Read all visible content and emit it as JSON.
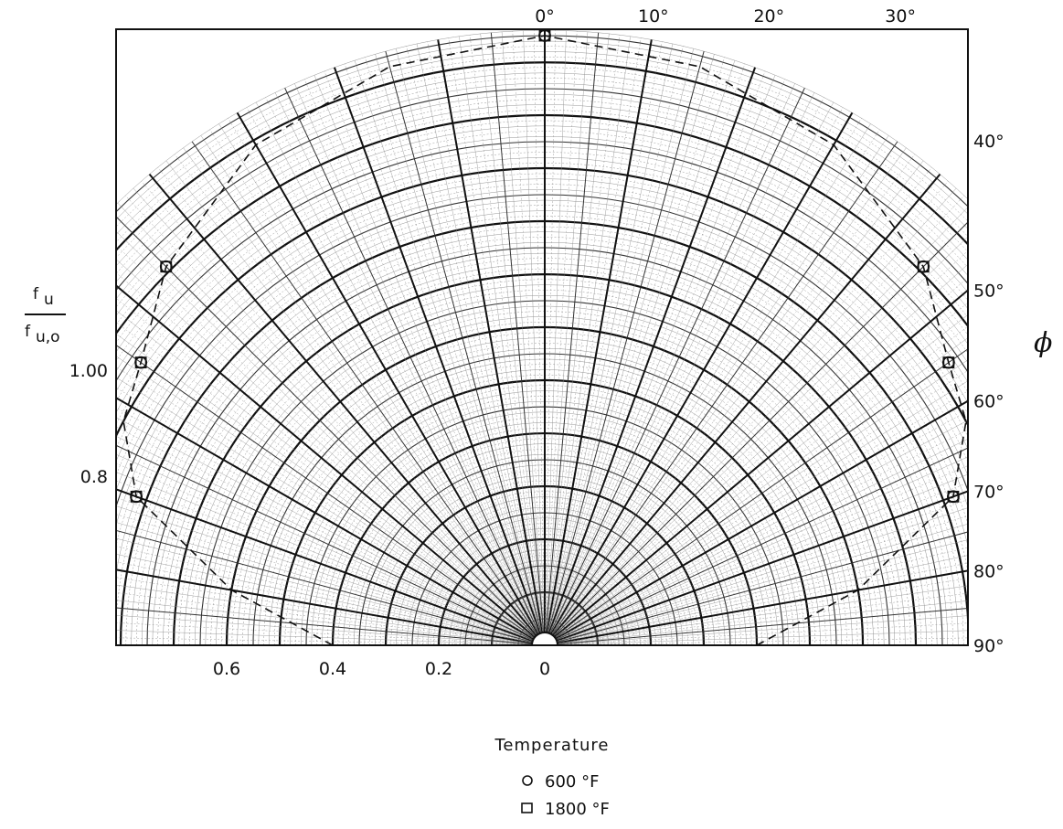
{
  "chart_data": {
    "type": "scatter",
    "polar": true,
    "title": "",
    "radial_label": {
      "numerator": "f",
      "numerator_sub": "u",
      "denominator": "f",
      "denominator_sub": "u,o"
    },
    "angle_label": "ϕ",
    "radial_ticks": [
      {
        "value": 0.6,
        "label": "0.6"
      },
      {
        "value": 0.4,
        "label": "0.4"
      },
      {
        "value": 0.2,
        "label": "0.2"
      },
      {
        "value": 0,
        "label": "0"
      }
    ],
    "vertical_ticks": [
      {
        "value": 1.0,
        "label": "1.00"
      },
      {
        "value": 0.8,
        "label": "0.8"
      }
    ],
    "angle_ticks_top": [
      {
        "value": 0,
        "label": "0°"
      },
      {
        "value": 10,
        "label": "10°"
      },
      {
        "value": 20,
        "label": "20°"
      },
      {
        "value": 30,
        "label": "30°"
      }
    ],
    "angle_ticks_right": [
      {
        "value": 40,
        "label": "40°"
      },
      {
        "value": 50,
        "label": "50°"
      },
      {
        "value": 60,
        "label": "60°"
      },
      {
        "value": 70,
        "label": "70°"
      },
      {
        "value": 80,
        "label": "80°"
      },
      {
        "value": 90,
        "label": "90°"
      }
    ],
    "r_max": 1.16,
    "grid": true,
    "legend": {
      "title": "Temperature",
      "position": "bottom",
      "entries": [
        {
          "marker": "circle",
          "label": "600 °F"
        },
        {
          "marker": "square",
          "label": "1800 °F"
        }
      ]
    },
    "series": [
      {
        "label": "600 °F",
        "marker": "circle",
        "points": [
          {
            "phi": 0,
            "r": 1.15
          },
          {
            "phi": 45,
            "r": 1.01
          },
          {
            "phi": 55,
            "r": 0.93
          },
          {
            "phi": 70,
            "r": 0.82
          },
          {
            "phi": -45,
            "r": 1.01
          },
          {
            "phi": -55,
            "r": 0.93
          },
          {
            "phi": -70,
            "r": 0.82
          }
        ]
      },
      {
        "label": "1800 °F",
        "marker": "square",
        "points": [
          {
            "phi": 0,
            "r": 1.15
          },
          {
            "phi": 45,
            "r": 1.01
          },
          {
            "phi": 55,
            "r": 0.93
          },
          {
            "phi": 70,
            "r": 0.82
          },
          {
            "phi": -45,
            "r": 1.01
          },
          {
            "phi": -55,
            "r": 0.93
          },
          {
            "phi": -70,
            "r": 0.82
          }
        ]
      }
    ],
    "fit_curve": [
      {
        "phi": -90,
        "r": 0.4
      },
      {
        "phi": -80,
        "r": 0.6
      },
      {
        "phi": -70,
        "r": 0.82
      },
      {
        "phi": -62,
        "r": 0.9
      },
      {
        "phi": -55,
        "r": 0.93
      },
      {
        "phi": -45,
        "r": 1.01
      },
      {
        "phi": -30,
        "r": 1.09
      },
      {
        "phi": -15,
        "r": 1.13
      },
      {
        "phi": 0,
        "r": 1.15
      },
      {
        "phi": 15,
        "r": 1.13
      },
      {
        "phi": 30,
        "r": 1.09
      },
      {
        "phi": 45,
        "r": 1.01
      },
      {
        "phi": 55,
        "r": 0.93
      },
      {
        "phi": 62,
        "r": 0.9
      },
      {
        "phi": 70,
        "r": 0.82
      },
      {
        "phi": 80,
        "r": 0.6
      },
      {
        "phi": 90,
        "r": 0.4
      }
    ]
  }
}
